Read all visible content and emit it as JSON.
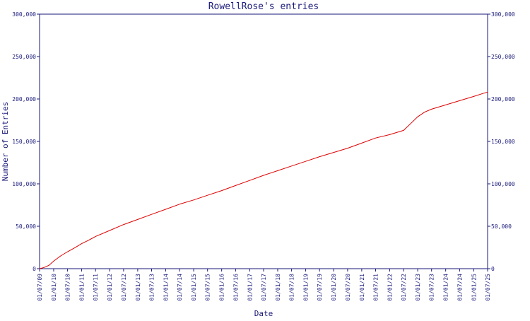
{
  "chart_data": {
    "type": "line",
    "title": "RowellRose's entries",
    "xlabel": "Date",
    "ylabel": "Number of Entries",
    "ylim": [
      0,
      300000
    ],
    "y_ticks": [
      0,
      50000,
      100000,
      150000,
      200000,
      250000,
      300000
    ],
    "y_tick_labels": [
      "0",
      "50,000",
      "100,000",
      "150,000",
      "200,000",
      "250,000",
      "300,000"
    ],
    "x_ticks": [
      "2009-07-01",
      "2010-01-01",
      "2010-07-01",
      "2011-01-01",
      "2011-07-01",
      "2012-01-01",
      "2012-07-01",
      "2013-01-01",
      "2013-07-01",
      "2014-01-01",
      "2014-07-01",
      "2015-01-01",
      "2015-07-01",
      "2016-01-01",
      "2016-07-01",
      "2017-01-01",
      "2017-07-01",
      "2018-01-01",
      "2018-07-01",
      "2019-01-01",
      "2019-07-01",
      "2020-01-01",
      "2020-07-01",
      "2021-01-01",
      "2021-07-01",
      "2022-01-01",
      "2022-07-01",
      "2023-01-01",
      "2023-07-01",
      "2024-01-01",
      "2024-07-01",
      "2025-01-01",
      "2025-07-01"
    ],
    "x_tick_labels": [
      "01/07/09",
      "01/01/10",
      "01/07/10",
      "01/01/11",
      "01/07/11",
      "01/01/12",
      "01/07/12",
      "01/01/13",
      "01/07/13",
      "01/01/14",
      "01/07/14",
      "01/01/15",
      "01/07/15",
      "01/01/16",
      "01/07/16",
      "01/01/17",
      "01/07/17",
      "01/01/18",
      "01/07/18",
      "01/01/19",
      "01/07/19",
      "01/01/20",
      "01/07/20",
      "01/01/21",
      "01/07/21",
      "01/01/22",
      "01/07/22",
      "01/01/23",
      "01/07/23",
      "01/01/24",
      "01/07/24",
      "01/01/25",
      "01/07/25"
    ],
    "xlim": [
      "2009-07-01",
      "2025-07-01"
    ],
    "grid": false,
    "legend": "none",
    "colors": {
      "line": "#dd0000",
      "axis": "#1a1a7a",
      "background": "#ffffff"
    },
    "series": [
      {
        "x": [
          "2009-07-01",
          "2009-09-01",
          "2009-11-01",
          "2010-01-01",
          "2010-04-01",
          "2010-07-01",
          "2010-10-01",
          "2011-01-01",
          "2011-04-01",
          "2011-07-01",
          "2012-01-01",
          "2012-07-01",
          "2013-01-01",
          "2013-07-01",
          "2014-01-01",
          "2014-07-01",
          "2015-01-01",
          "2015-07-01",
          "2016-01-01",
          "2016-07-01",
          "2017-01-01",
          "2017-07-01",
          "2018-01-01",
          "2018-07-01",
          "2019-01-01",
          "2019-07-01",
          "2020-01-01",
          "2020-07-01",
          "2021-01-01",
          "2021-07-01",
          "2022-01-01",
          "2022-07-01",
          "2022-10-01",
          "2023-01-01",
          "2023-04-01",
          "2023-07-01",
          "2024-01-01",
          "2024-07-01",
          "2025-01-01",
          "2025-05-01",
          "2025-07-01"
        ],
        "values": [
          0,
          1500,
          4000,
          9000,
          15000,
          20000,
          24500,
          29500,
          33500,
          38000,
          45000,
          52000,
          58000,
          64000,
          70000,
          76000,
          81000,
          86500,
          92000,
          98000,
          104000,
          110000,
          115500,
          121000,
          126500,
          132000,
          137000,
          142000,
          148000,
          154000,
          158000,
          163000,
          171000,
          179000,
          184500,
          188000,
          193000,
          198000,
          203000,
          206500,
          208000
        ]
      }
    ]
  }
}
